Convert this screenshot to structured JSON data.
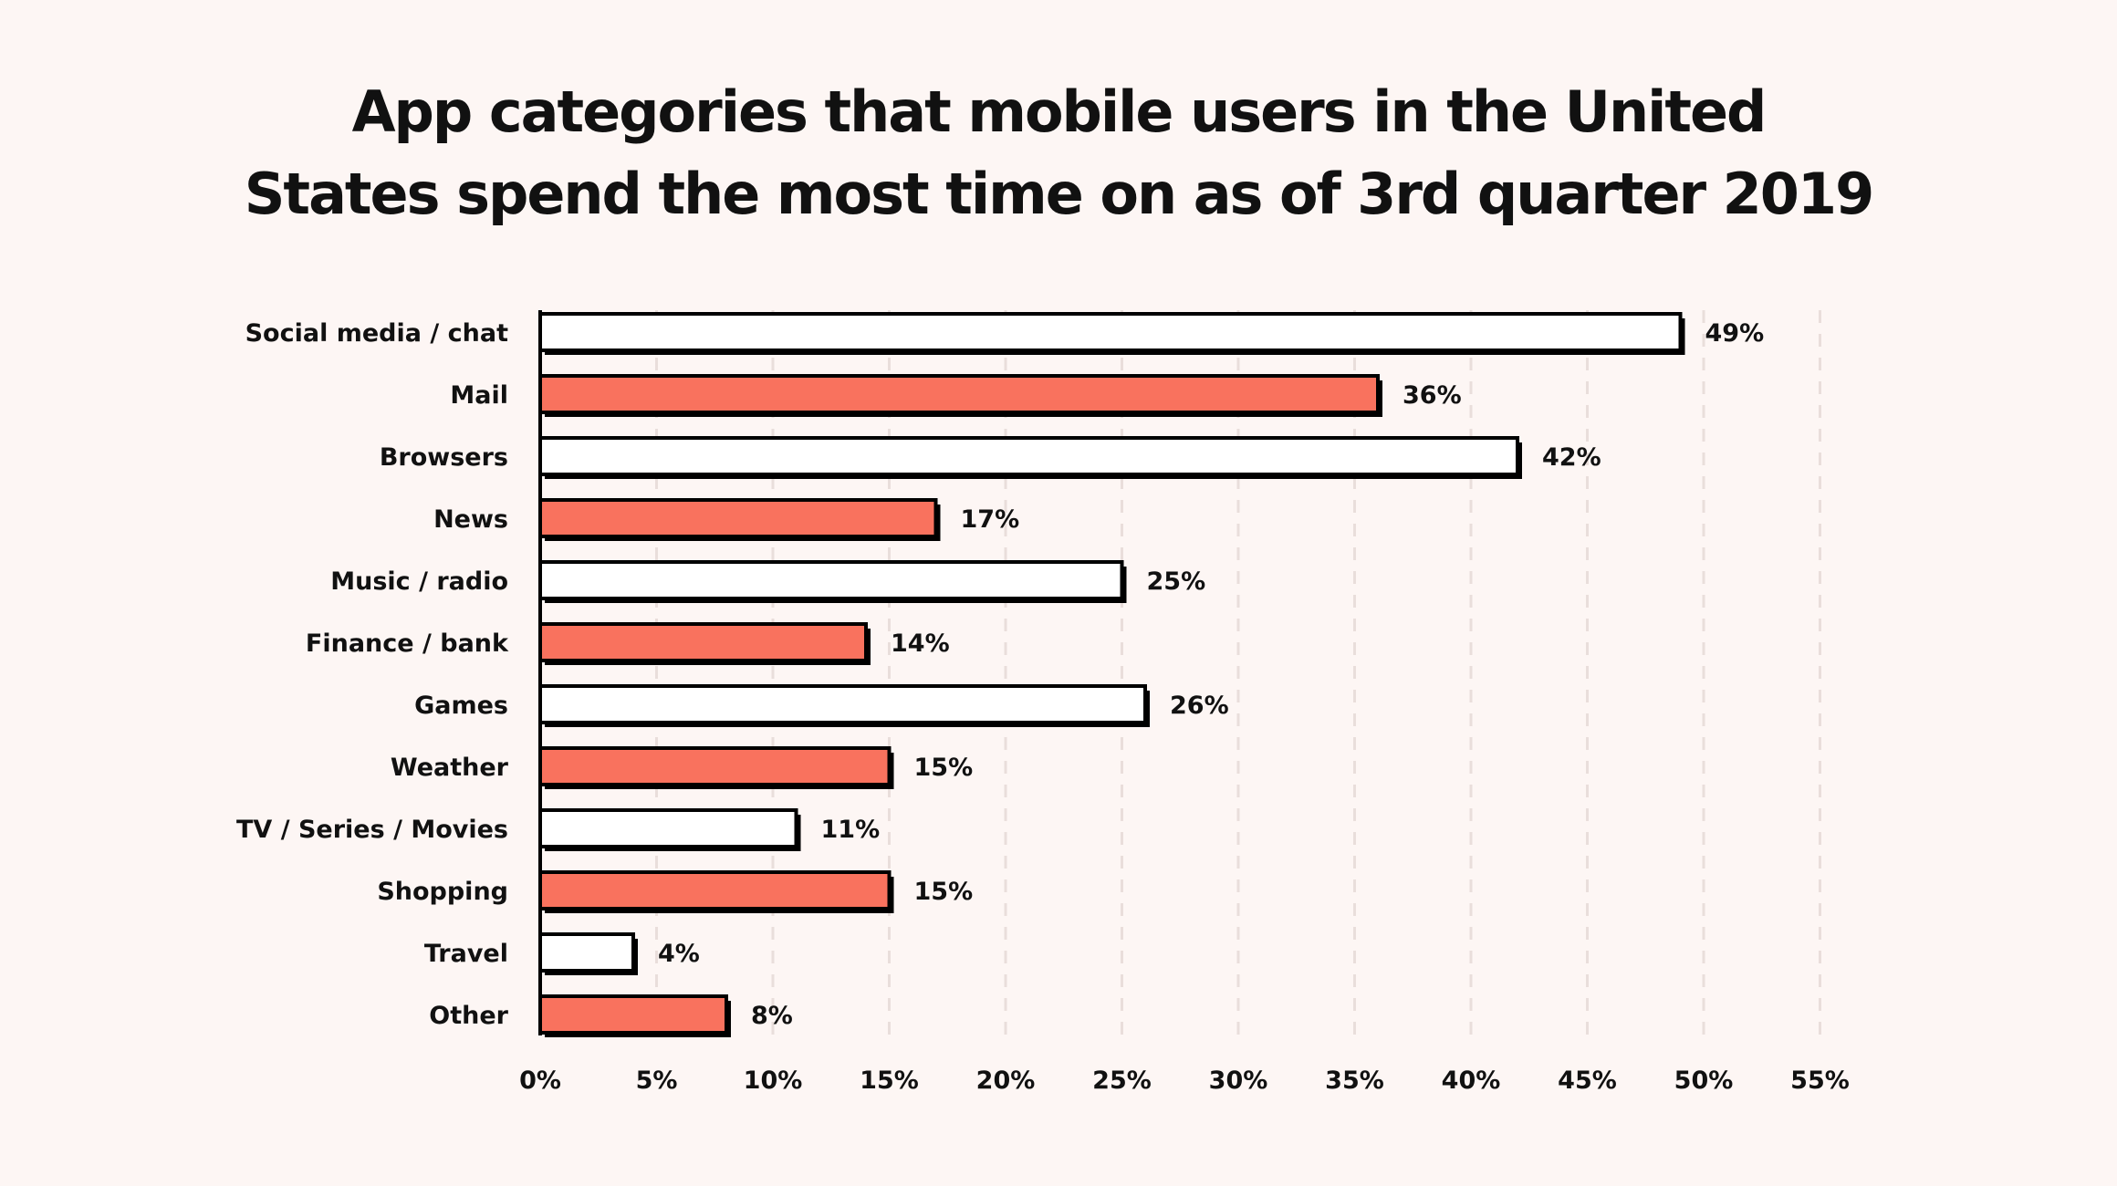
{
  "chart_data": {
    "type": "bar",
    "orientation": "horizontal",
    "title_lines": [
      "App categories that mobile users in the United",
      "States spend the most time on as of 3rd quarter 2019"
    ],
    "categories": [
      "Social media / chat",
      "Mail",
      "Browsers",
      "News",
      "Music / radio",
      "Finance / bank",
      "Games",
      "Weather",
      "TV / Series / Movies",
      "Shopping",
      "Travel",
      "Other"
    ],
    "values": [
      49,
      36,
      42,
      17,
      25,
      14,
      26,
      15,
      11,
      15,
      4,
      8
    ],
    "value_labels": [
      "49%",
      "36%",
      "42%",
      "17%",
      "25%",
      "14%",
      "26%",
      "15%",
      "11%",
      "15%",
      "4%",
      "8%"
    ],
    "x_ticks": [
      0,
      5,
      10,
      15,
      20,
      25,
      30,
      35,
      40,
      45,
      50,
      55
    ],
    "x_tick_labels": [
      "0%",
      "5%",
      "10%",
      "15%",
      "20%",
      "25%",
      "30%",
      "35%",
      "40%",
      "45%",
      "50%",
      "55%"
    ],
    "xlim": [
      0,
      55
    ],
    "xlabel": "",
    "ylabel": "",
    "grid": "vertical dashed",
    "bar_colors": [
      "#ffffff",
      "#f9725e"
    ],
    "outline_color": "#000000",
    "background_color": "#fdf6f4",
    "grid_color": "#e9dedb"
  }
}
